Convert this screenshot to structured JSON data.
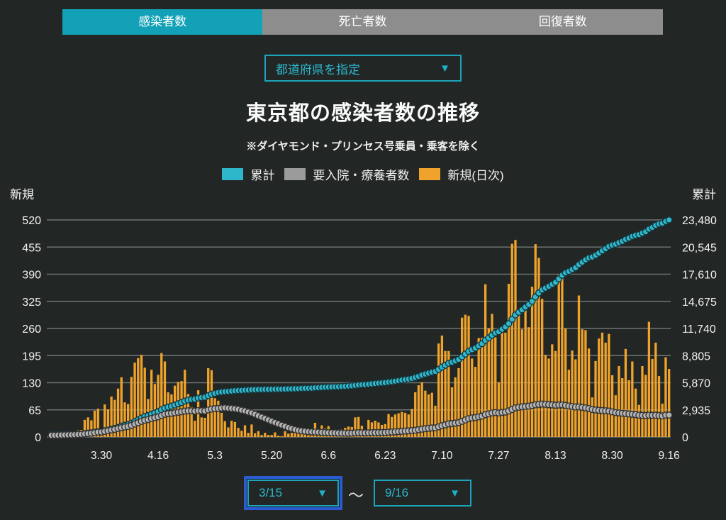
{
  "tabs": [
    {
      "label": "感染者数",
      "active": true
    },
    {
      "label": "死亡者数",
      "active": false
    },
    {
      "label": "回復者数",
      "active": false
    }
  ],
  "prefecture_select": {
    "value": "都道府県を指定"
  },
  "icons": {
    "dropdown_arrow": "▼"
  },
  "title": "東京都の感染者数の推移",
  "subtitle": "※ダイヤモンド・プリンセス号乗員・乗客を除く",
  "legend": [
    {
      "label": "累計",
      "color": "#2eb7cb"
    },
    {
      "label": "要入院・療養者数",
      "color": "#9b9b9b"
    },
    {
      "label": "新規(日次)",
      "color": "#f0a32a"
    }
  ],
  "left_axis": {
    "title": "新規",
    "ticks": [
      "520",
      "455",
      "390",
      "325",
      "260",
      "195",
      "130",
      "65",
      "0"
    ]
  },
  "right_axis": {
    "title": "累計",
    "ticks": [
      "23,480",
      "20,545",
      "17,610",
      "14,675",
      "11,740",
      "8,805",
      "5,870",
      "2,935",
      "0"
    ]
  },
  "x_axis": {
    "ticks": [
      "3.30",
      "4.16",
      "5.3",
      "5.20",
      "6.6",
      "6.23",
      "7.10",
      "7.27",
      "8.13",
      "8.30",
      "9.16"
    ],
    "day_indices": [
      15,
      32,
      49,
      66,
      83,
      100,
      117,
      134,
      151,
      168,
      185
    ]
  },
  "date_range": {
    "start": "3/15",
    "separator": "〜",
    "end": "9/16"
  },
  "chart_data": {
    "type": "combo-bar-line",
    "date_start": "3/15",
    "date_end": "9/16",
    "days": 186,
    "left_axis_max": 520,
    "right_axis_max": 23480,
    "grid_on": true,
    "grid_color": "#6d7375",
    "series": [
      {
        "id": "new-daily",
        "name": "新規(日次)",
        "type": "bar",
        "axis": "left",
        "color": "#f0a32a",
        "values": [
          4,
          12,
          9,
          9,
          7,
          7,
          3,
          3,
          16,
          17,
          41,
          47,
          40,
          63,
          68,
          13,
          78,
          66,
          97,
          89,
          116,
          143,
          83,
          79,
          144,
          178,
          189,
          197,
          166,
          91,
          161,
          127,
          149,
          201,
          181,
          107,
          102,
          123,
          132,
          134,
          161,
          103,
          72,
          39,
          112,
          47,
          46,
          165,
          160,
          93,
          87,
          58,
          38,
          23,
          39,
          36,
          22,
          15,
          28,
          10,
          30,
          9,
          14,
          5,
          10,
          5,
          5,
          11,
          3,
          2,
          14,
          8,
          10,
          11,
          15,
          22,
          14,
          5,
          13,
          34,
          12,
          28,
          20,
          26,
          14,
          13,
          12,
          18,
          22,
          25,
          24,
          47,
          48,
          27,
          16,
          41,
          35,
          39,
          35,
          29,
          31,
          55,
          48,
          54,
          57,
          60,
          58,
          54,
          67,
          107,
          124,
          131,
          111,
          102,
          106,
          75,
          224,
          243,
          206,
          206,
          119,
          143,
          165,
          286,
          293,
          290,
          188,
          168,
          237,
          238,
          366,
          260,
          295,
          239,
          131,
          266,
          250,
          367,
          463,
          472,
          292,
          258,
          309,
          263,
          360,
          462,
          429,
          331,
          197,
          188,
          222,
          206,
          389,
          385,
          260,
          161,
          207,
          186,
          339,
          258,
          256,
          212,
          95,
          182,
          236,
          250,
          226,
          247,
          148,
          100,
          170,
          141,
          211,
          136,
          181,
          116,
          77,
          170,
          149,
          276,
          187,
          226,
          146,
          80,
          191,
          163
        ]
      },
      {
        "id": "cumulative",
        "name": "累計",
        "type": "line",
        "axis": "right",
        "color": "#2eb7cb",
        "stroke": "#17343a",
        "values": [
          238,
          250,
          259,
          268,
          275,
          282,
          285,
          288,
          304,
          321,
          362,
          409,
          449,
          512,
          580,
          593,
          671,
          737,
          834,
          923,
          1039,
          1182,
          1265,
          1344,
          1488,
          1666,
          1855,
          2052,
          2218,
          2309,
          2470,
          2597,
          2746,
          2947,
          3128,
          3235,
          3337,
          3460,
          3592,
          3726,
          3887,
          3990,
          4062,
          4101,
          4213,
          4260,
          4306,
          4471,
          4631,
          4724,
          4811,
          4869,
          4907,
          4930,
          4969,
          5005,
          5027,
          5042,
          5070,
          5080,
          5110,
          5119,
          5133,
          5138,
          5148,
          5153,
          5158,
          5169,
          5172,
          5174,
          5188,
          5196,
          5206,
          5217,
          5232,
          5254,
          5268,
          5273,
          5286,
          5320,
          5332,
          5360,
          5380,
          5406,
          5420,
          5433,
          5445,
          5463,
          5485,
          5510,
          5534,
          5581,
          5629,
          5656,
          5672,
          5713,
          5748,
          5787,
          5822,
          5851,
          5882,
          5937,
          5985,
          6039,
          6096,
          6156,
          6214,
          6268,
          6335,
          6442,
          6566,
          6697,
          6808,
          6910,
          7016,
          7091,
          7315,
          7558,
          7764,
          7970,
          8089,
          8232,
          8397,
          8683,
          8976,
          9266,
          9454,
          9622,
          9859,
          10097,
          10463,
          10723,
          11018,
          11257,
          11388,
          11654,
          11904,
          12271,
          12734,
          13206,
          13498,
          13756,
          14065,
          14328,
          14688,
          15150,
          15579,
          15910,
          16107,
          16295,
          16517,
          16723,
          17112,
          17497,
          17757,
          17918,
          18125,
          18311,
          18650,
          18908,
          19164,
          19376,
          19471,
          19653,
          19889,
          20139,
          20365,
          20612,
          20760,
          20860,
          21030,
          21171,
          21382,
          21518,
          21699,
          21815,
          21892,
          22062,
          22211,
          22487,
          22674,
          22900,
          23046,
          23126,
          23317,
          23480
        ]
      },
      {
        "id": "hospitalized",
        "name": "要入院・療養者数",
        "type": "line",
        "axis": "right",
        "color": "#b3b3b3",
        "stroke": "#333333",
        "values": [
          180,
          190,
          200,
          210,
          220,
          230,
          240,
          250,
          270,
          290,
          330,
          370,
          410,
          470,
          530,
          540,
          610,
          680,
          760,
          830,
          920,
          1010,
          1080,
          1140,
          1260,
          1400,
          1550,
          1700,
          1820,
          1890,
          2000,
          2090,
          2180,
          2330,
          2460,
          2520,
          2560,
          2620,
          2680,
          2730,
          2800,
          2830,
          2830,
          2800,
          2850,
          2830,
          2820,
          2930,
          3020,
          3060,
          3090,
          3130,
          3150,
          3120,
          3090,
          3050,
          2990,
          2900,
          2820,
          2700,
          2600,
          2450,
          2300,
          2150,
          2000,
          1850,
          1700,
          1560,
          1420,
          1280,
          1150,
          1020,
          900,
          800,
          720,
          660,
          620,
          580,
          550,
          540,
          520,
          500,
          480,
          460,
          450,
          440,
          430,
          420,
          415,
          410,
          420,
          440,
          460,
          450,
          440,
          450,
          460,
          470,
          480,
          480,
          490,
          520,
          540,
          560,
          590,
          620,
          640,
          660,
          690,
          730,
          790,
          850,
          900,
          940,
          980,
          990,
          1100,
          1220,
          1320,
          1420,
          1460,
          1500,
          1560,
          1700,
          1840,
          1980,
          2060,
          2100,
          2180,
          2260,
          2420,
          2500,
          2600,
          2640,
          2600,
          2660,
          2700,
          2820,
          2980,
          3150,
          3220,
          3260,
          3300,
          3340,
          3400,
          3480,
          3530,
          3560,
          3540,
          3500,
          3470,
          3440,
          3460,
          3470,
          3420,
          3350,
          3300,
          3240,
          3250,
          3200,
          3150,
          3080,
          2980,
          2920,
          2890,
          2860,
          2830,
          2800,
          2720,
          2640,
          2600,
          2560,
          2530,
          2490,
          2460,
          2420,
          2360,
          2340,
          2320,
          2360,
          2340,
          2350,
          2320,
          2280,
          2360,
          2370
        ]
      }
    ]
  }
}
